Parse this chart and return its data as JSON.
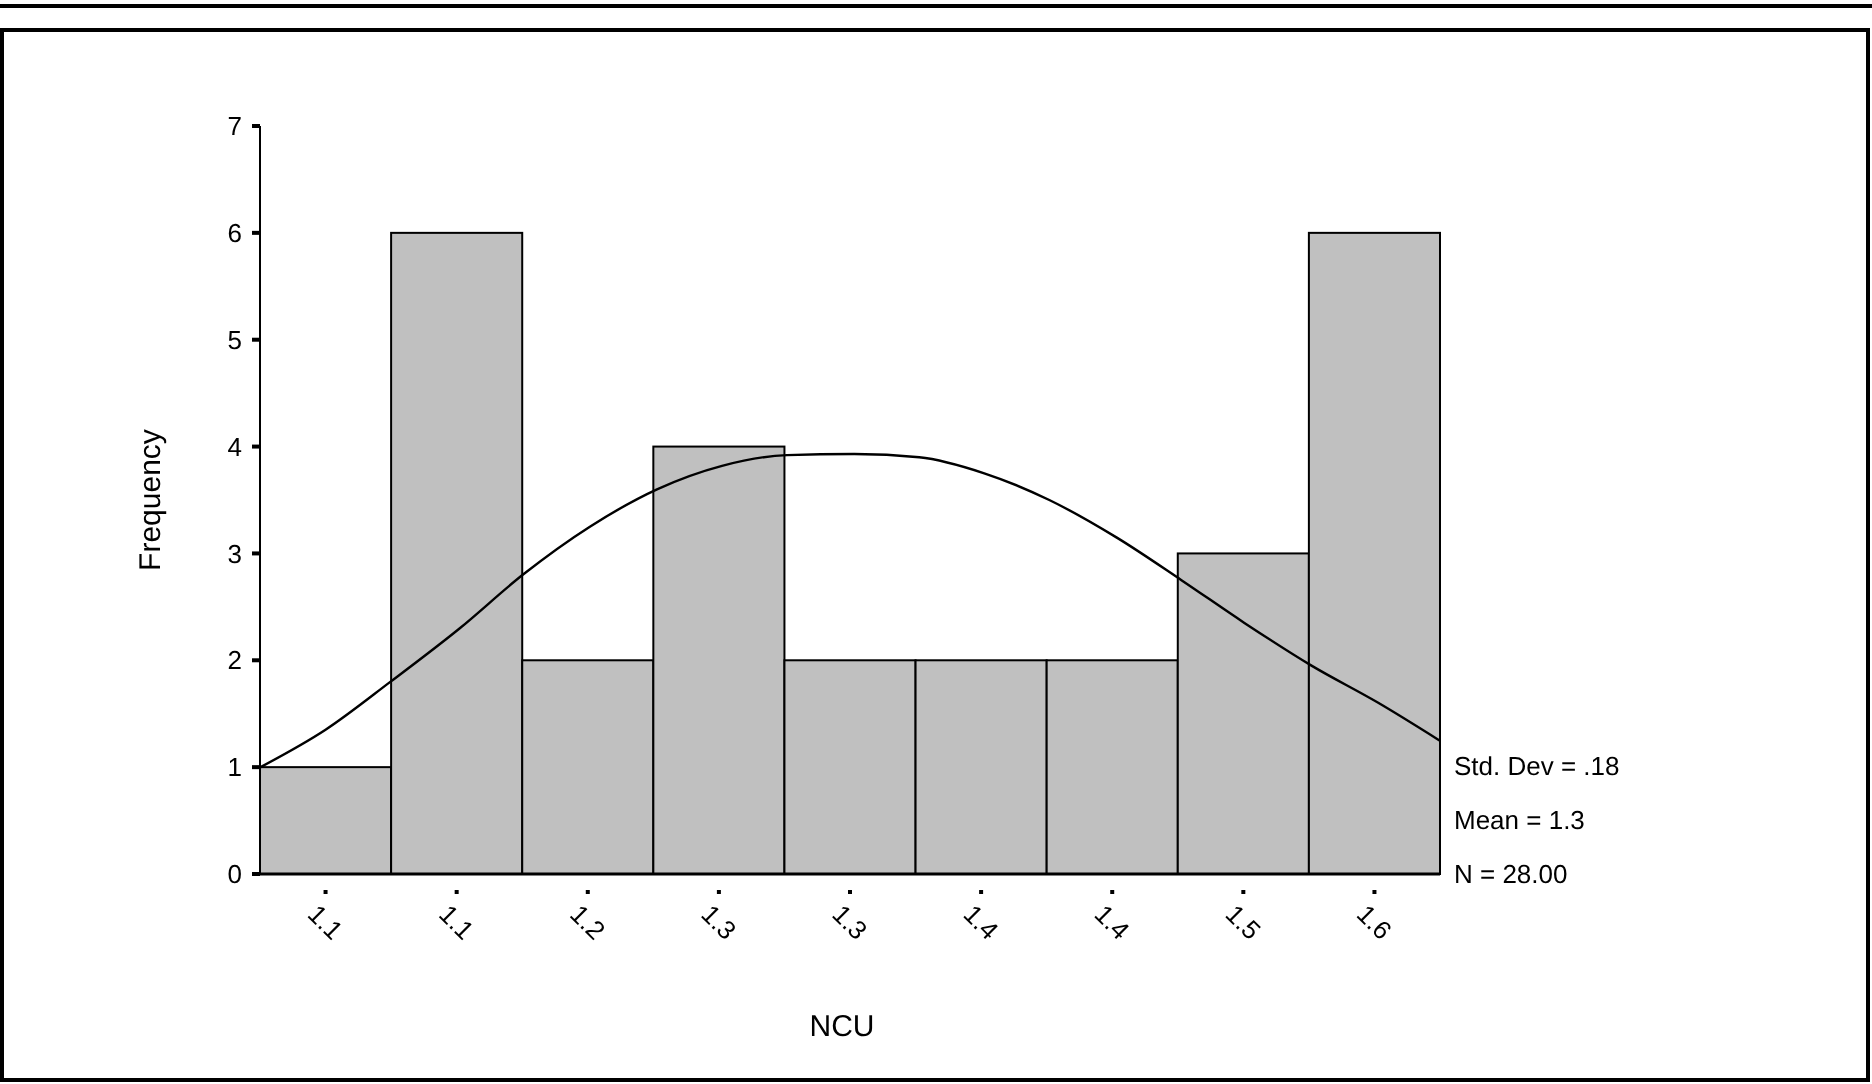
{
  "chart_data": {
    "type": "histogram",
    "xlabel": "NCU",
    "ylabel": "Frequency",
    "bins": [
      1.04375,
      1.10625,
      1.16875,
      1.23125,
      1.29375,
      1.35625,
      1.41875,
      1.48125,
      1.54375,
      1.60625
    ],
    "values": [
      1,
      6,
      2,
      4,
      2,
      2,
      2,
      3,
      6
    ],
    "color": "#c0c0c0",
    "series": [
      {
        "type": "line",
        "color": "#000000",
        "x": [
          1.044,
          1.075,
          1.106,
          1.139,
          1.169,
          1.201,
          1.233,
          1.264,
          1.295,
          1.327,
          1.358,
          1.389,
          1.42,
          1.452,
          1.483,
          1.513,
          1.545,
          1.577,
          1.606
        ],
        "values": [
          1.0,
          1.35,
          1.8,
          2.3,
          2.8,
          3.25,
          3.6,
          3.82,
          3.92,
          3.93,
          3.9,
          3.75,
          3.5,
          3.15,
          2.75,
          2.35,
          1.95,
          1.6,
          1.25
        ]
      }
    ],
    "xticks": [
      {
        "value": 1.075,
        "label": "1.1"
      },
      {
        "value": 1.1375,
        "label": "1.1"
      },
      {
        "value": 1.2,
        "label": "1.2"
      },
      {
        "value": 1.2625,
        "label": "1.3"
      },
      {
        "value": 1.325,
        "label": "1.3"
      },
      {
        "value": 1.3875,
        "label": "1.4"
      },
      {
        "value": 1.45,
        "label": "1.4"
      },
      {
        "value": 1.5125,
        "label": "1.5"
      },
      {
        "value": 1.575,
        "label": "1.6"
      }
    ],
    "xlim": [
      1.04375,
      1.60625
    ],
    "ylim": [
      0,
      7
    ],
    "yticks": [
      0,
      1,
      2,
      3,
      4,
      5,
      6,
      7
    ],
    "annotations": [
      "Std. Dev = .18",
      "Mean = 1.3",
      "N = 28.00"
    ]
  }
}
